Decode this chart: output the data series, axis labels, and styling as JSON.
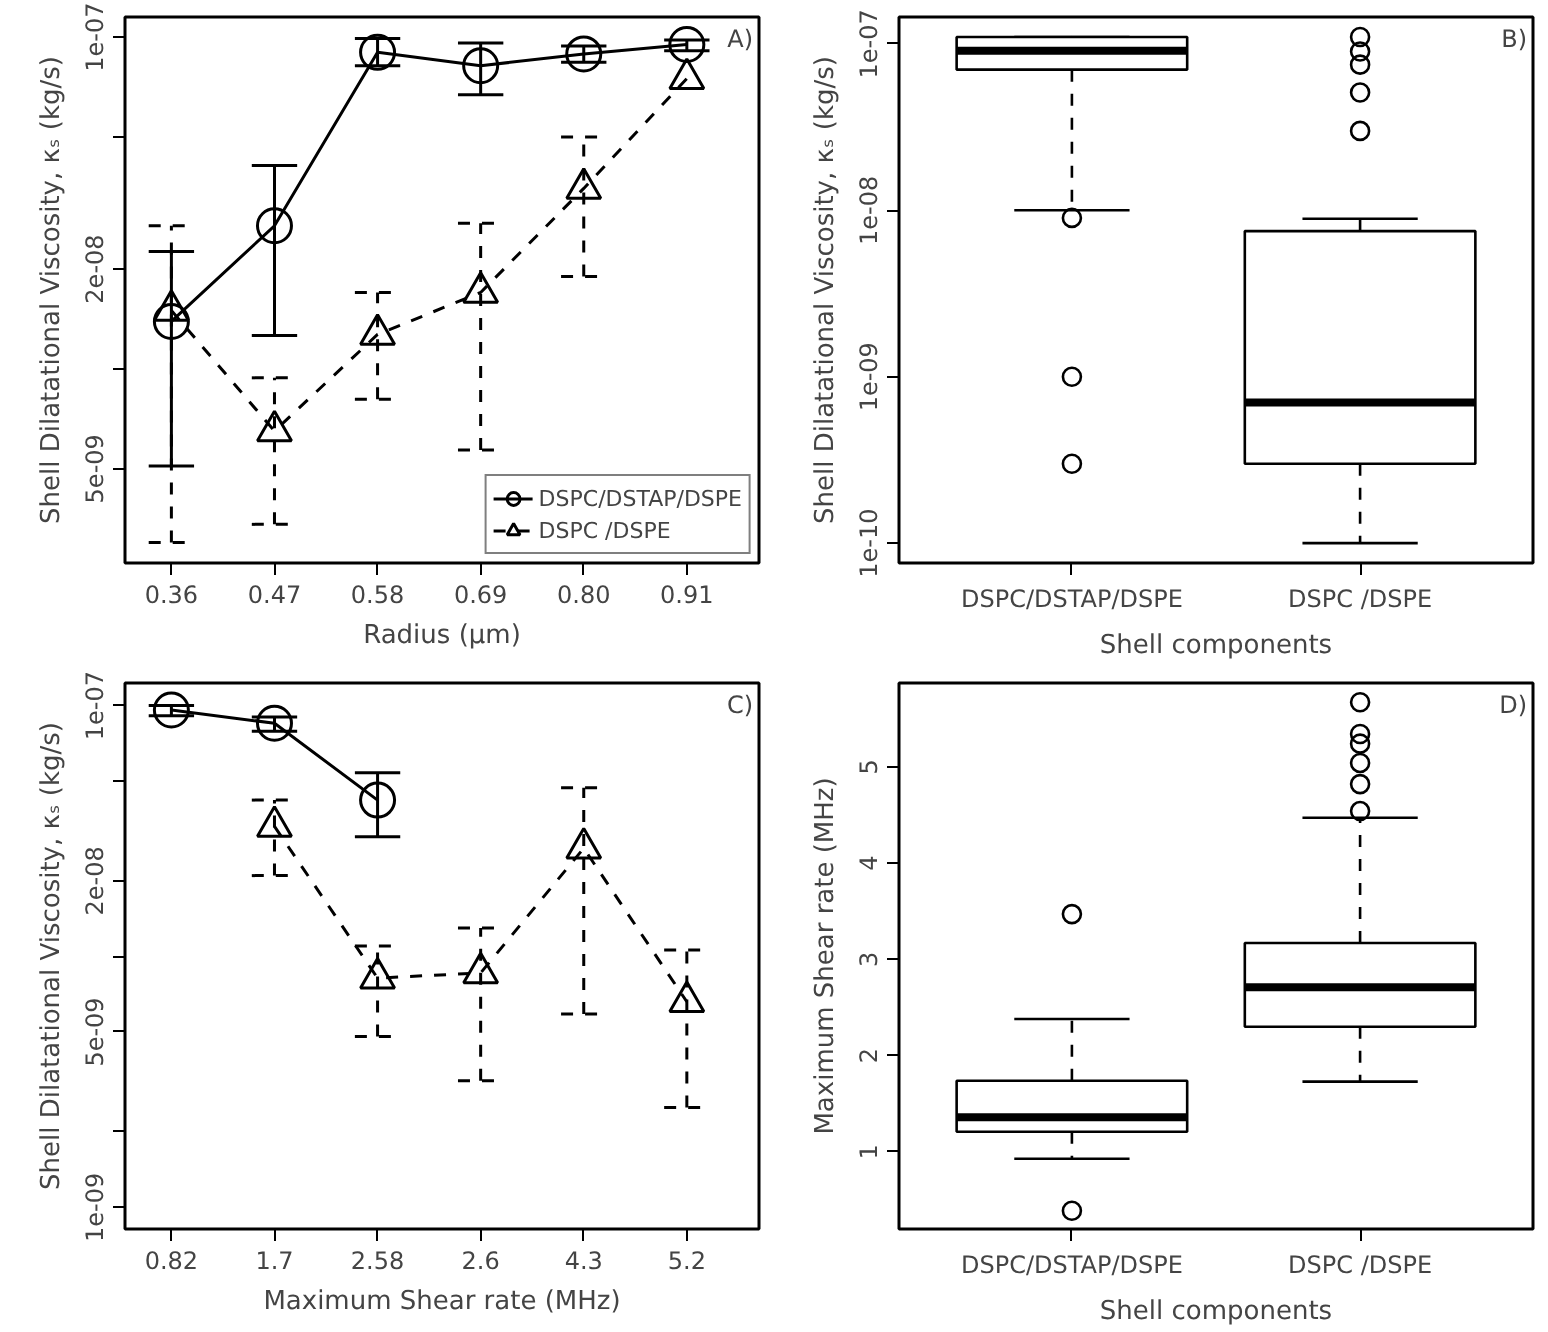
{
  "chart_data": [
    {
      "type": "line",
      "xlabel": "Radius (µm)",
      "ylabel": "Shell Dilatational Viscosity, κₛ (kg/s)",
      "categories": [
        "0.36",
        "0.47",
        "0.58",
        "0.69",
        "0.80",
        "0.91"
      ],
      "log": true,
      "ylim": [
        2.6e-09,
        1.15e-07
      ],
      "yticks": [
        {
          "value": 1e-07,
          "label": "1e-07"
        },
        {
          "value": 5e-08,
          "label": null
        },
        {
          "value": 2e-08,
          "label": "2e-08"
        },
        {
          "value": 1e-08,
          "label": null
        },
        {
          "value": 5e-09,
          "label": "5e-09"
        }
      ],
      "legend": "bottom right",
      "annotations": [
        "A)"
      ],
      "series": [
        {
          "name": "DSPC/DSTAP/DSPE",
          "color": "#000000",
          "marker": "circle",
          "line_style": "solid",
          "values": [
            1.39e-08,
            2.7e-08,
            9e-08,
            8.2e-08,
            8.9e-08,
            9.5e-08
          ],
          "errors": [
            [
              5.1e-09,
              2.26e-08
            ],
            [
              1.26e-08,
              4.1e-08
            ],
            [
              8.2e-08,
              9.9e-08
            ],
            [
              6.7e-08,
              9.6e-08
            ],
            [
              8.4e-08,
              9.4e-08
            ],
            [
              9.1e-08,
              9.8e-08
            ]
          ]
        },
        {
          "name": "DSPC /DSPE",
          "color": "#000000",
          "marker": "triangle",
          "line_style": "dashed",
          "values": [
            1.5e-08,
            6.5e-09,
            1.27e-08,
            1.7e-08,
            3.5e-08,
            7.5e-08
          ],
          "errors": [
            [
              3e-09,
              2.7e-08
            ],
            [
              3.4e-09,
              9.4e-09
            ],
            [
              8.1e-09,
              1.7e-08
            ],
            [
              5.7e-09,
              2.75e-08
            ],
            [
              1.9e-08,
              5e-08
            ],
            null
          ]
        }
      ]
    },
    {
      "type": "box",
      "xlabel": "Shell components",
      "ylabel": "Shell Dilatational Viscosity, κₛ (kg/s)",
      "categories": [
        "DSPC/DSTAP/DSPE",
        "DSPC /DSPE"
      ],
      "log": true,
      "ylim": [
        7.6e-11,
        1.45e-07
      ],
      "yticks": [
        {
          "value": 1e-07,
          "label": "1e-07"
        },
        {
          "value": 1e-08,
          "label": "1e-08"
        },
        {
          "value": 1e-09,
          "label": "1e-09"
        },
        {
          "value": 1e-10,
          "label": "1e-10"
        }
      ],
      "annotations": [
        "B)"
      ],
      "boxes": [
        {
          "low": 1e-08,
          "q1": 7e-08,
          "median": 9.1e-08,
          "q3": 1.1e-07,
          "high": 1.1e-07,
          "outliers": [
            9e-09,
            1e-09,
            3e-10
          ]
        },
        {
          "low": 1e-10,
          "q1": 3e-10,
          "median": 7e-10,
          "q3": 7.5e-09,
          "high": 8.9e-09,
          "outliers": [
            3e-08,
            5.1e-08,
            7.5e-08,
            9e-08,
            1.1e-07
          ]
        }
      ]
    },
    {
      "type": "line",
      "xlabel": "Maximum Shear rate (MHz)",
      "ylabel": "Shell Dilatational Viscosity, κₛ (kg/s)",
      "categories": [
        "0.82",
        "1.7",
        "2.58",
        "2.6",
        "4.3",
        "5.2"
      ],
      "log": true,
      "ylim": [
        8.2e-10,
        1.23e-07
      ],
      "yticks": [
        {
          "value": 1e-07,
          "label": "1e-07"
        },
        {
          "value": 5e-08,
          "label": null
        },
        {
          "value": 2e-08,
          "label": "2e-08"
        },
        {
          "value": 1e-08,
          "label": null
        },
        {
          "value": 5e-09,
          "label": "5e-09"
        },
        {
          "value": 2e-09,
          "label": null
        },
        {
          "value": 1e-09,
          "label": "1e-09"
        }
      ],
      "annotations": [
        "C)"
      ],
      "series": [
        {
          "color": "#000000",
          "marker": "circle",
          "line_style": "solid",
          "values": [
            9.6e-08,
            8.5e-08,
            4.2e-08,
            null,
            null,
            null
          ],
          "errors": [
            [
              9.1e-08,
              1e-07
            ],
            [
              7.9e-08,
              9e-08
            ],
            [
              3e-08,
              5.4e-08
            ],
            null,
            null,
            null
          ]
        },
        {
          "color": "#000000",
          "marker": "triangle",
          "line_style": "dashed",
          "values": [
            null,
            3.3e-08,
            8.2e-09,
            8.6e-09,
            2.7e-08,
            6.6e-09
          ],
          "errors": [
            null,
            [
              2.1e-08,
              4.2e-08
            ],
            [
              4.8e-09,
              1.1e-08
            ],
            [
              3.2e-09,
              1.3e-08
            ],
            [
              5.9e-09,
              4.7e-08
            ],
            [
              2.5e-09,
              1.06e-08
            ]
          ]
        }
      ]
    },
    {
      "type": "box",
      "xlabel": "Shell components",
      "ylabel": "Maximum Shear rate (MHz)",
      "categories": [
        "DSPC/DSTAP/DSPE",
        "DSPC /DSPE"
      ],
      "ylim": [
        0.2,
        5.87
      ],
      "yticks": [
        1,
        2,
        3,
        4,
        5
      ],
      "annotations": [
        "D)"
      ],
      "boxes": [
        {
          "low": 0.93,
          "q1": 1.21,
          "median": 1.36,
          "q3": 1.74,
          "high": 2.38,
          "outliers": [
            3.47,
            0.39
          ]
        },
        {
          "low": 1.73,
          "q1": 2.3,
          "median": 2.71,
          "q3": 3.17,
          "high": 4.47,
          "outliers": [
            5.67,
            5.34,
            5.24,
            5.04,
            4.82,
            4.54
          ]
        }
      ]
    }
  ]
}
